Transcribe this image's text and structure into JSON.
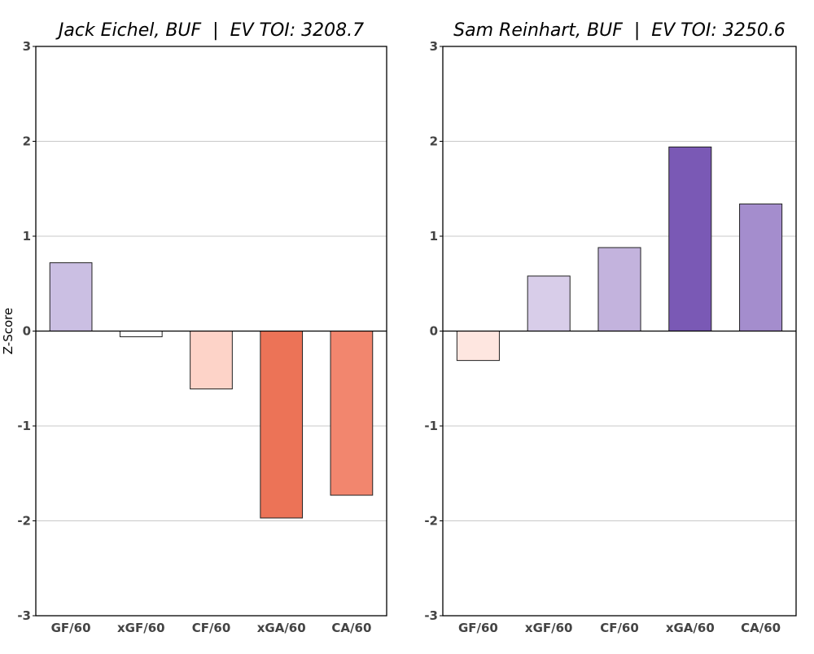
{
  "chart_data": [
    {
      "type": "bar",
      "title": "Jack Eichel, BUF  |  EV TOI: 3208.7",
      "ylabel": "Z-Score",
      "xlabel": "",
      "categories": [
        "GF/60",
        "xGF/60",
        "CF/60",
        "xGA/60",
        "CA/60"
      ],
      "values": [
        0.72,
        -0.06,
        -0.61,
        -1.97,
        -1.73
      ],
      "colors": [
        "#cbbfe3",
        "#ffffff",
        "#fdd3c8",
        "#ec7357",
        "#f2866e"
      ],
      "ylim": [
        -3,
        3
      ],
      "yticks": [
        "-3",
        "-2",
        "-1",
        "0",
        "1",
        "2",
        "3"
      ],
      "grid": "horizontal"
    },
    {
      "type": "bar",
      "title": "Sam Reinhart, BUF  |  EV TOI: 3250.6",
      "ylabel": "",
      "xlabel": "",
      "categories": [
        "GF/60",
        "xGF/60",
        "CF/60",
        "xGA/60",
        "CA/60"
      ],
      "values": [
        -0.31,
        0.58,
        0.88,
        1.94,
        1.34
      ],
      "colors": [
        "#fee6e0",
        "#d8cde9",
        "#c3b3dd",
        "#7a59b5",
        "#a48dcd"
      ],
      "ylim": [
        -3,
        3
      ],
      "yticks": [
        "-3",
        "-2",
        "-1",
        "0",
        "1",
        "2",
        "3"
      ],
      "grid": "horizontal"
    }
  ]
}
